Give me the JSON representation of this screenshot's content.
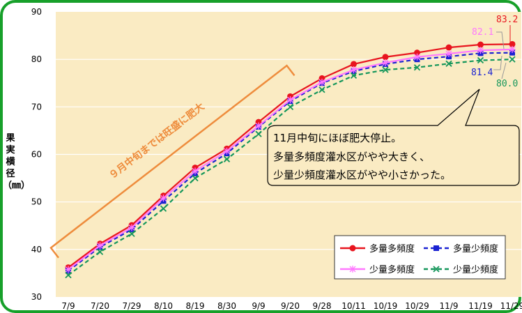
{
  "colors": {
    "frame": "#17a02a",
    "plot_bg": "#faebc3",
    "grid": "#ffffff",
    "bracket": "#ee8c3c",
    "bracket_text": "#ee8c3c",
    "callout_bg": "#faebc3"
  },
  "chart_data": {
    "type": "line",
    "ylabel": "果実横径（㎜）",
    "ylim": [
      30,
      90
    ],
    "yticks": [
      "30",
      "40",
      "50",
      "60",
      "70",
      "80",
      "90"
    ],
    "categories": [
      "7/9",
      "7/20",
      "7/29",
      "8/10",
      "8/19",
      "8/30",
      "9/9",
      "9/20",
      "9/28",
      "10/11",
      "10/19",
      "10/29",
      "11/9",
      "11/19",
      "11/29"
    ],
    "grid": "horizontal",
    "legend_position": "bottom-right",
    "series": [
      {
        "name": "多量多頻度",
        "color": "#e8141e",
        "marker": "circle",
        "dash": "solid",
        "values": [
          36.2,
          41.2,
          45.1,
          51.3,
          57.2,
          61.2,
          66.8,
          72.2,
          76.0,
          79.0,
          80.5,
          81.4,
          82.5,
          83.1,
          83.2
        ]
      },
      {
        "name": "多量少頻度",
        "color": "#1a22d2",
        "marker": "square",
        "dash": "dashed",
        "values": [
          35.5,
          40.5,
          44.2,
          50.2,
          56.0,
          60.2,
          65.8,
          71.2,
          75.0,
          77.5,
          79.0,
          80.0,
          80.6,
          81.3,
          81.4
        ]
      },
      {
        "name": "少量多頻度",
        "color": "#ff78ff",
        "marker": "star",
        "dash": "solid",
        "values": [
          35.8,
          40.8,
          44.6,
          50.8,
          56.5,
          60.7,
          66.0,
          71.5,
          75.2,
          77.8,
          79.3,
          80.5,
          81.2,
          81.9,
          82.1
        ]
      },
      {
        "name": "少量少頻度",
        "color": "#14965a",
        "marker": "x",
        "dash": "dashed",
        "values": [
          34.6,
          39.5,
          43.3,
          48.6,
          55.0,
          59.0,
          64.3,
          70.0,
          73.6,
          76.6,
          77.8,
          78.3,
          79.1,
          79.8,
          80.0
        ]
      }
    ],
    "end_labels": [
      "83.2",
      "82.1",
      "81.4",
      "80.0"
    ],
    "annotations": {
      "bracket_text": "９月中旬までは旺盛に肥大",
      "callout_lines": [
        "11月中旬にほぼ肥大停止。",
        "多量多頻度灌水区がやや大きく、",
        "少量少頻度灌水区がやや小さかった。"
      ]
    }
  }
}
